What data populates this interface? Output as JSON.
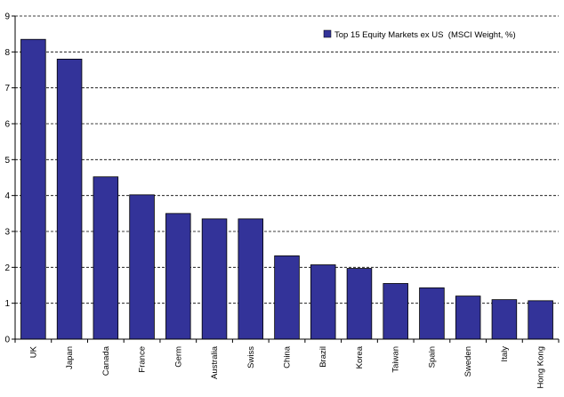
{
  "chart_data": {
    "type": "bar",
    "categories": [
      "UK",
      "Japan",
      "Canada",
      "France",
      "Germ",
      "Australia",
      "Swiss",
      "China",
      "Brazil",
      "Korea",
      "Taiwan",
      "Spain",
      "Sweden",
      "Italy",
      "Hong Kong"
    ],
    "series": [
      {
        "name": "Top 15 Equity Markets ex US  (MSCI Weight, %)",
        "values": [
          8.35,
          7.8,
          4.52,
          4.02,
          3.5,
          3.35,
          3.35,
          2.32,
          2.07,
          1.97,
          1.55,
          1.43,
          1.2,
          1.1,
          1.07
        ],
        "color": "#333399"
      }
    ],
    "ylim": [
      0,
      9
    ],
    "yticks": [
      "0",
      "1",
      "2",
      "3",
      "4",
      "5",
      "6",
      "7",
      "8",
      "9"
    ],
    "grid": true,
    "legend_position": "top-right",
    "title": "",
    "xlabel": "",
    "ylabel": ""
  }
}
